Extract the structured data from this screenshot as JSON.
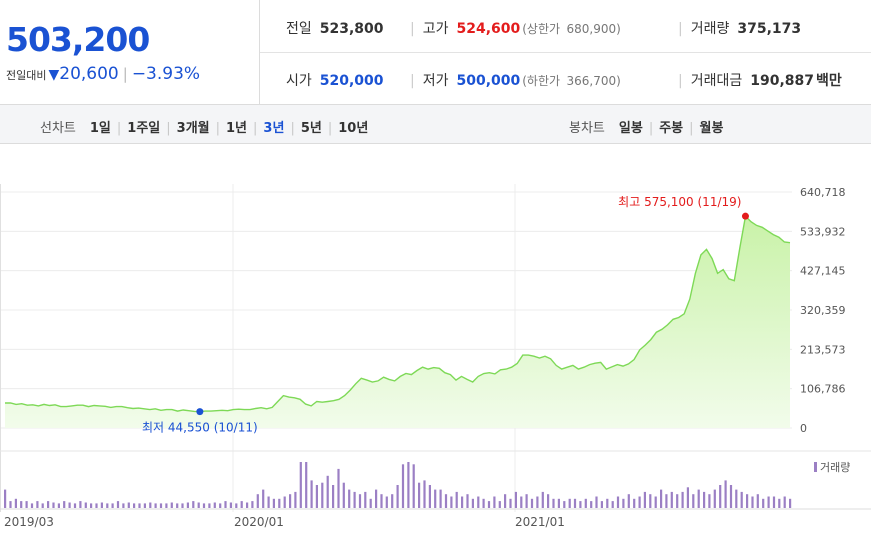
{
  "quote": {
    "price": "503,200",
    "change_label": "전일대비",
    "change_value": "20,600",
    "change_pct": "−3.93%",
    "prev_close_label": "전일",
    "prev_close": "523,800",
    "high_label": "고가",
    "high": "524,600",
    "upper_limit_label": "(상한가",
    "upper_limit": "680,900)",
    "volume_label": "거래량",
    "volume": "375,173",
    "open_label": "시가",
    "open": "520,000",
    "low_label": "저가",
    "low": "500,000",
    "lower_limit_label": "(하한가",
    "lower_limit": "366,700)",
    "turnover_label": "거래대금",
    "turnover": "190,887",
    "turnover_unit": "백만"
  },
  "toolbar": {
    "line_chart_label": "선차트",
    "periods": [
      "1일",
      "1주일",
      "3개월",
      "1년",
      "3년",
      "5년",
      "10년"
    ],
    "active_period": 4,
    "candle_chart_label": "봉차트",
    "candle_periods": [
      "일봉",
      "주봉",
      "월봉"
    ]
  },
  "colors": {
    "up": "#e31c1c",
    "down": "#1a52d3",
    "line": "#7ed957",
    "volume": "#9b7fc4"
  },
  "chart_data": {
    "type": "area",
    "ylim": [
      0,
      640718
    ],
    "yticks": [
      "640,718",
      "533,932",
      "427,145",
      "320,359",
      "213,573",
      "106,786",
      "0"
    ],
    "xticks": [
      "2019/03",
      "2020/01",
      "2021/01"
    ],
    "annotations": {
      "max_label": "최고 575,100 (11/19)",
      "min_label": "최저 44,550 (10/11)"
    },
    "volume_legend": "거래량",
    "series": [
      {
        "values": [
          68000,
          68000,
          64000,
          66000,
          62000,
          63000,
          60000,
          64000,
          61000,
          63000,
          58000,
          58000,
          60000,
          62000,
          62000,
          58000,
          61000,
          60000,
          59000,
          56000,
          58000,
          58000,
          55000,
          53000,
          54000,
          52000,
          50000,
          52000,
          48000,
          50000,
          50000,
          46000,
          49000,
          47000,
          45000,
          44550,
          46000,
          46000,
          47000,
          48000,
          47000,
          50000,
          51000,
          50000,
          50000,
          53000,
          55000,
          52000,
          56000,
          72000,
          88000,
          84000,
          82000,
          78000,
          65000,
          60000,
          72000,
          70000,
          72000,
          74000,
          78000,
          88000,
          103000,
          120000,
          135000,
          130000,
          125000,
          128000,
          138000,
          132000,
          128000,
          140000,
          148000,
          145000,
          156000,
          165000,
          160000,
          164000,
          162000,
          150000,
          145000,
          130000,
          140000,
          132000,
          125000,
          140000,
          148000,
          150000,
          147000,
          158000,
          160000,
          165000,
          175000,
          198000,
          198000,
          195000,
          190000,
          195000,
          188000,
          170000,
          160000,
          165000,
          170000,
          160000,
          165000,
          172000,
          176000,
          178000,
          160000,
          166000,
          172000,
          168000,
          174000,
          186000,
          212000,
          225000,
          240000,
          260000,
          268000,
          280000,
          295000,
          300000,
          310000,
          350000,
          420000,
          470000,
          485000,
          460000,
          420000,
          430000,
          405000,
          400000,
          490000,
          575100,
          560000,
          550000,
          545000,
          535000,
          525000,
          518000,
          505000,
          503200
        ]
      }
    ],
    "volume": [
      0.4,
      0.15,
      0.2,
      0.15,
      0.15,
      0.1,
      0.15,
      0.1,
      0.15,
      0.12,
      0.1,
      0.15,
      0.12,
      0.1,
      0.15,
      0.12,
      0.1,
      0.1,
      0.12,
      0.1,
      0.1,
      0.15,
      0.1,
      0.12,
      0.1,
      0.1,
      0.1,
      0.12,
      0.1,
      0.1,
      0.1,
      0.12,
      0.1,
      0.1,
      0.12,
      0.15,
      0.12,
      0.1,
      0.1,
      0.12,
      0.1,
      0.15,
      0.12,
      0.1,
      0.15,
      0.12,
      0.15,
      0.3,
      0.4,
      0.25,
      0.2,
      0.2,
      0.25,
      0.3,
      0.35,
      1.0,
      1.0,
      0.6,
      0.5,
      0.55,
      0.7,
      0.5,
      0.85,
      0.55,
      0.4,
      0.35,
      0.3,
      0.35,
      0.2,
      0.4,
      0.3,
      0.25,
      0.3,
      0.5,
      0.95,
      1.0,
      0.95,
      0.55,
      0.6,
      0.5,
      0.4,
      0.4,
      0.3,
      0.25,
      0.35,
      0.25,
      0.3,
      0.2,
      0.25,
      0.2,
      0.15,
      0.25,
      0.15,
      0.3,
      0.2,
      0.35,
      0.25,
      0.3,
      0.2,
      0.25,
      0.35,
      0.3,
      0.2,
      0.2,
      0.15,
      0.2,
      0.2,
      0.15,
      0.2,
      0.15,
      0.25,
      0.15,
      0.2,
      0.15,
      0.25,
      0.2,
      0.3,
      0.2,
      0.25,
      0.35,
      0.3,
      0.25,
      0.4,
      0.3,
      0.35,
      0.3,
      0.35,
      0.45,
      0.3,
      0.4,
      0.35,
      0.3,
      0.4,
      0.5,
      0.6,
      0.5,
      0.4,
      0.35,
      0.3,
      0.25,
      0.3,
      0.2,
      0.25,
      0.25,
      0.2,
      0.25,
      0.2
    ]
  }
}
